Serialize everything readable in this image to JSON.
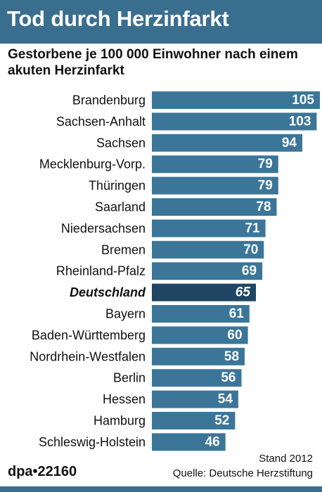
{
  "header": {
    "title": "Tod durch Herzinfarkt",
    "subtitle": "Gestorbene je 100 000 Einwohner nach einem akuten Herzinfarkt"
  },
  "chart_data": {
    "type": "bar",
    "orientation": "horizontal",
    "title": "Tod durch Herzinfarkt",
    "subtitle": "Gestorbene je 100 000 Einwohner nach einem akuten Herzinfarkt",
    "categories": [
      "Brandenburg",
      "Sachsen-Anhalt",
      "Sachsen",
      "Mecklenburg-Vorp.",
      "Thüringen",
      "Saarland",
      "Niedersachsen",
      "Bremen",
      "Rheinland-Pfalz",
      "Deutschland",
      "Bayern",
      "Baden-Württemberg",
      "Nordrhein-Westfalen",
      "Berlin",
      "Hessen",
      "Hamburg",
      "Schleswig-Holstein"
    ],
    "values": [
      105,
      103,
      94,
      79,
      79,
      78,
      71,
      70,
      69,
      65,
      61,
      60,
      58,
      56,
      54,
      52,
      46
    ],
    "highlight": "Deutschland",
    "xlim": [
      0,
      105
    ],
    "grid": false,
    "colors": {
      "bar": "#3b7699",
      "highlight_bar": "#1f4662",
      "value_text": "#ffffff"
    }
  },
  "footer": {
    "note": "Stand 2012",
    "source": "Quelle: Deutsche Herzstiftung",
    "credit": "dpa•22160"
  },
  "colors": {
    "header_bg": "#3a6e8f",
    "rule": "#3a6e8f"
  }
}
